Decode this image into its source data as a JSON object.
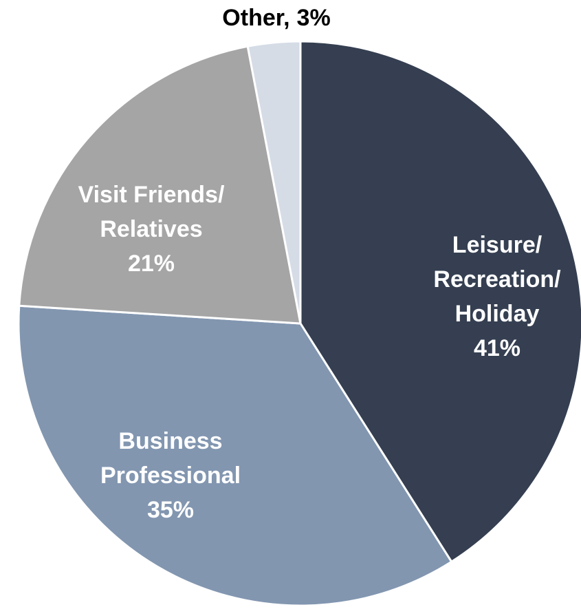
{
  "chart_data": {
    "type": "pie",
    "categories": [
      [
        "Leisure/",
        "Recreation/",
        "Holiday"
      ],
      [
        "Business",
        "Professional"
      ],
      [
        "Visit Friends/",
        "Relatives"
      ],
      [
        "Other,"
      ]
    ],
    "values": [
      41,
      35,
      21,
      3
    ],
    "value_labels": [
      "41%",
      "35%",
      "21%",
      "3%"
    ],
    "colors": [
      "#353f51",
      "#8296b0",
      "#a5a5a5",
      "#d5dce6"
    ]
  }
}
